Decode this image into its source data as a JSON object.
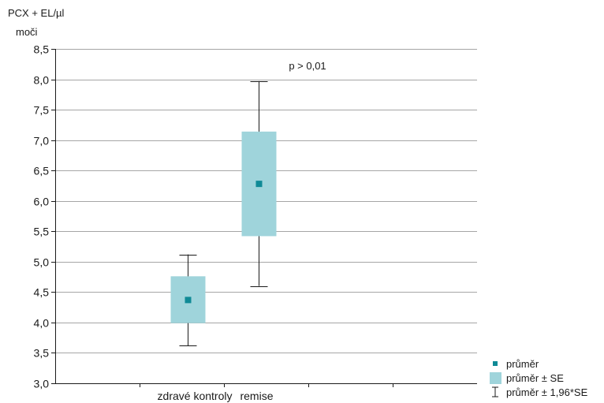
{
  "chart_data": {
    "type": "boxplot",
    "ylabel_line1": "PCX + EL/µl",
    "ylabel_line2": "moči",
    "ylim": [
      3.0,
      8.5
    ],
    "yticks": [
      "3,0",
      "3,5",
      "4,0",
      "4,5",
      "5,0",
      "5,5",
      "6,0",
      "6,5",
      "7,0",
      "7,5",
      "8,0",
      "8,5"
    ],
    "ytick_values": [
      3.0,
      3.5,
      4.0,
      4.5,
      5.0,
      5.5,
      6.0,
      6.5,
      7.0,
      7.5,
      8.0,
      8.5
    ],
    "categories": [
      "zdravé kontroly",
      "remise"
    ],
    "groups": [
      {
        "name": "zdravé kontroly",
        "mean": 4.37,
        "se_low": 3.99,
        "se_high": 4.76,
        "ci_low": 3.62,
        "ci_high": 5.12
      },
      {
        "name": "remise",
        "mean": 6.28,
        "se_low": 5.42,
        "se_high": 7.14,
        "ci_low": 4.6,
        "ci_high": 7.97
      }
    ],
    "annotation": "p > 0,01",
    "grid": true,
    "legend_position": "bottom-right",
    "colors": {
      "mean": "#0f8a96",
      "se_box": "#9fd4db",
      "whisker": "#1a1a1a",
      "grid": "#a6a6a6"
    }
  },
  "legend": {
    "mean_label": "průměr",
    "se_label": "průměr ± SE",
    "ci_label": "průměr ± 1,96*SE"
  }
}
